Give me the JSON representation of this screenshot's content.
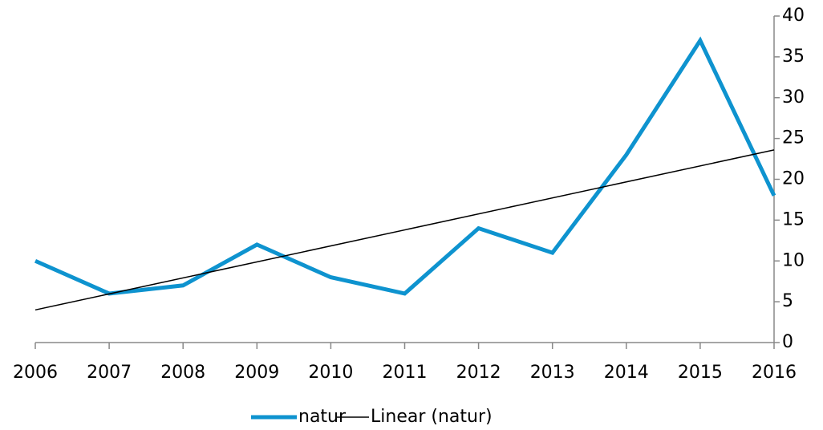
{
  "chart_data": {
    "type": "line",
    "x": [
      2006,
      2007,
      2008,
      2009,
      2010,
      2011,
      2012,
      2013,
      2014,
      2015,
      2016
    ],
    "series": [
      {
        "name": "natur",
        "color": "#0e93cf",
        "values": [
          10,
          6,
          7,
          12,
          8,
          6,
          14,
          11,
          23,
          37,
          18
        ]
      },
      {
        "name": "Linear (natur)",
        "color": "#000000",
        "x": [
          2006,
          2016
        ],
        "values": [
          4.0,
          23.6
        ]
      }
    ],
    "xlim": [
      2006,
      2016
    ],
    "xticks": [
      2006,
      2007,
      2008,
      2009,
      2010,
      2011,
      2012,
      2013,
      2014,
      2015,
      2016
    ],
    "ylim": [
      0,
      40
    ],
    "yticks": [
      0,
      5,
      10,
      15,
      20,
      25,
      30,
      35,
      40
    ],
    "y_axis_side": "right",
    "legend": "bottom",
    "grid": false
  }
}
